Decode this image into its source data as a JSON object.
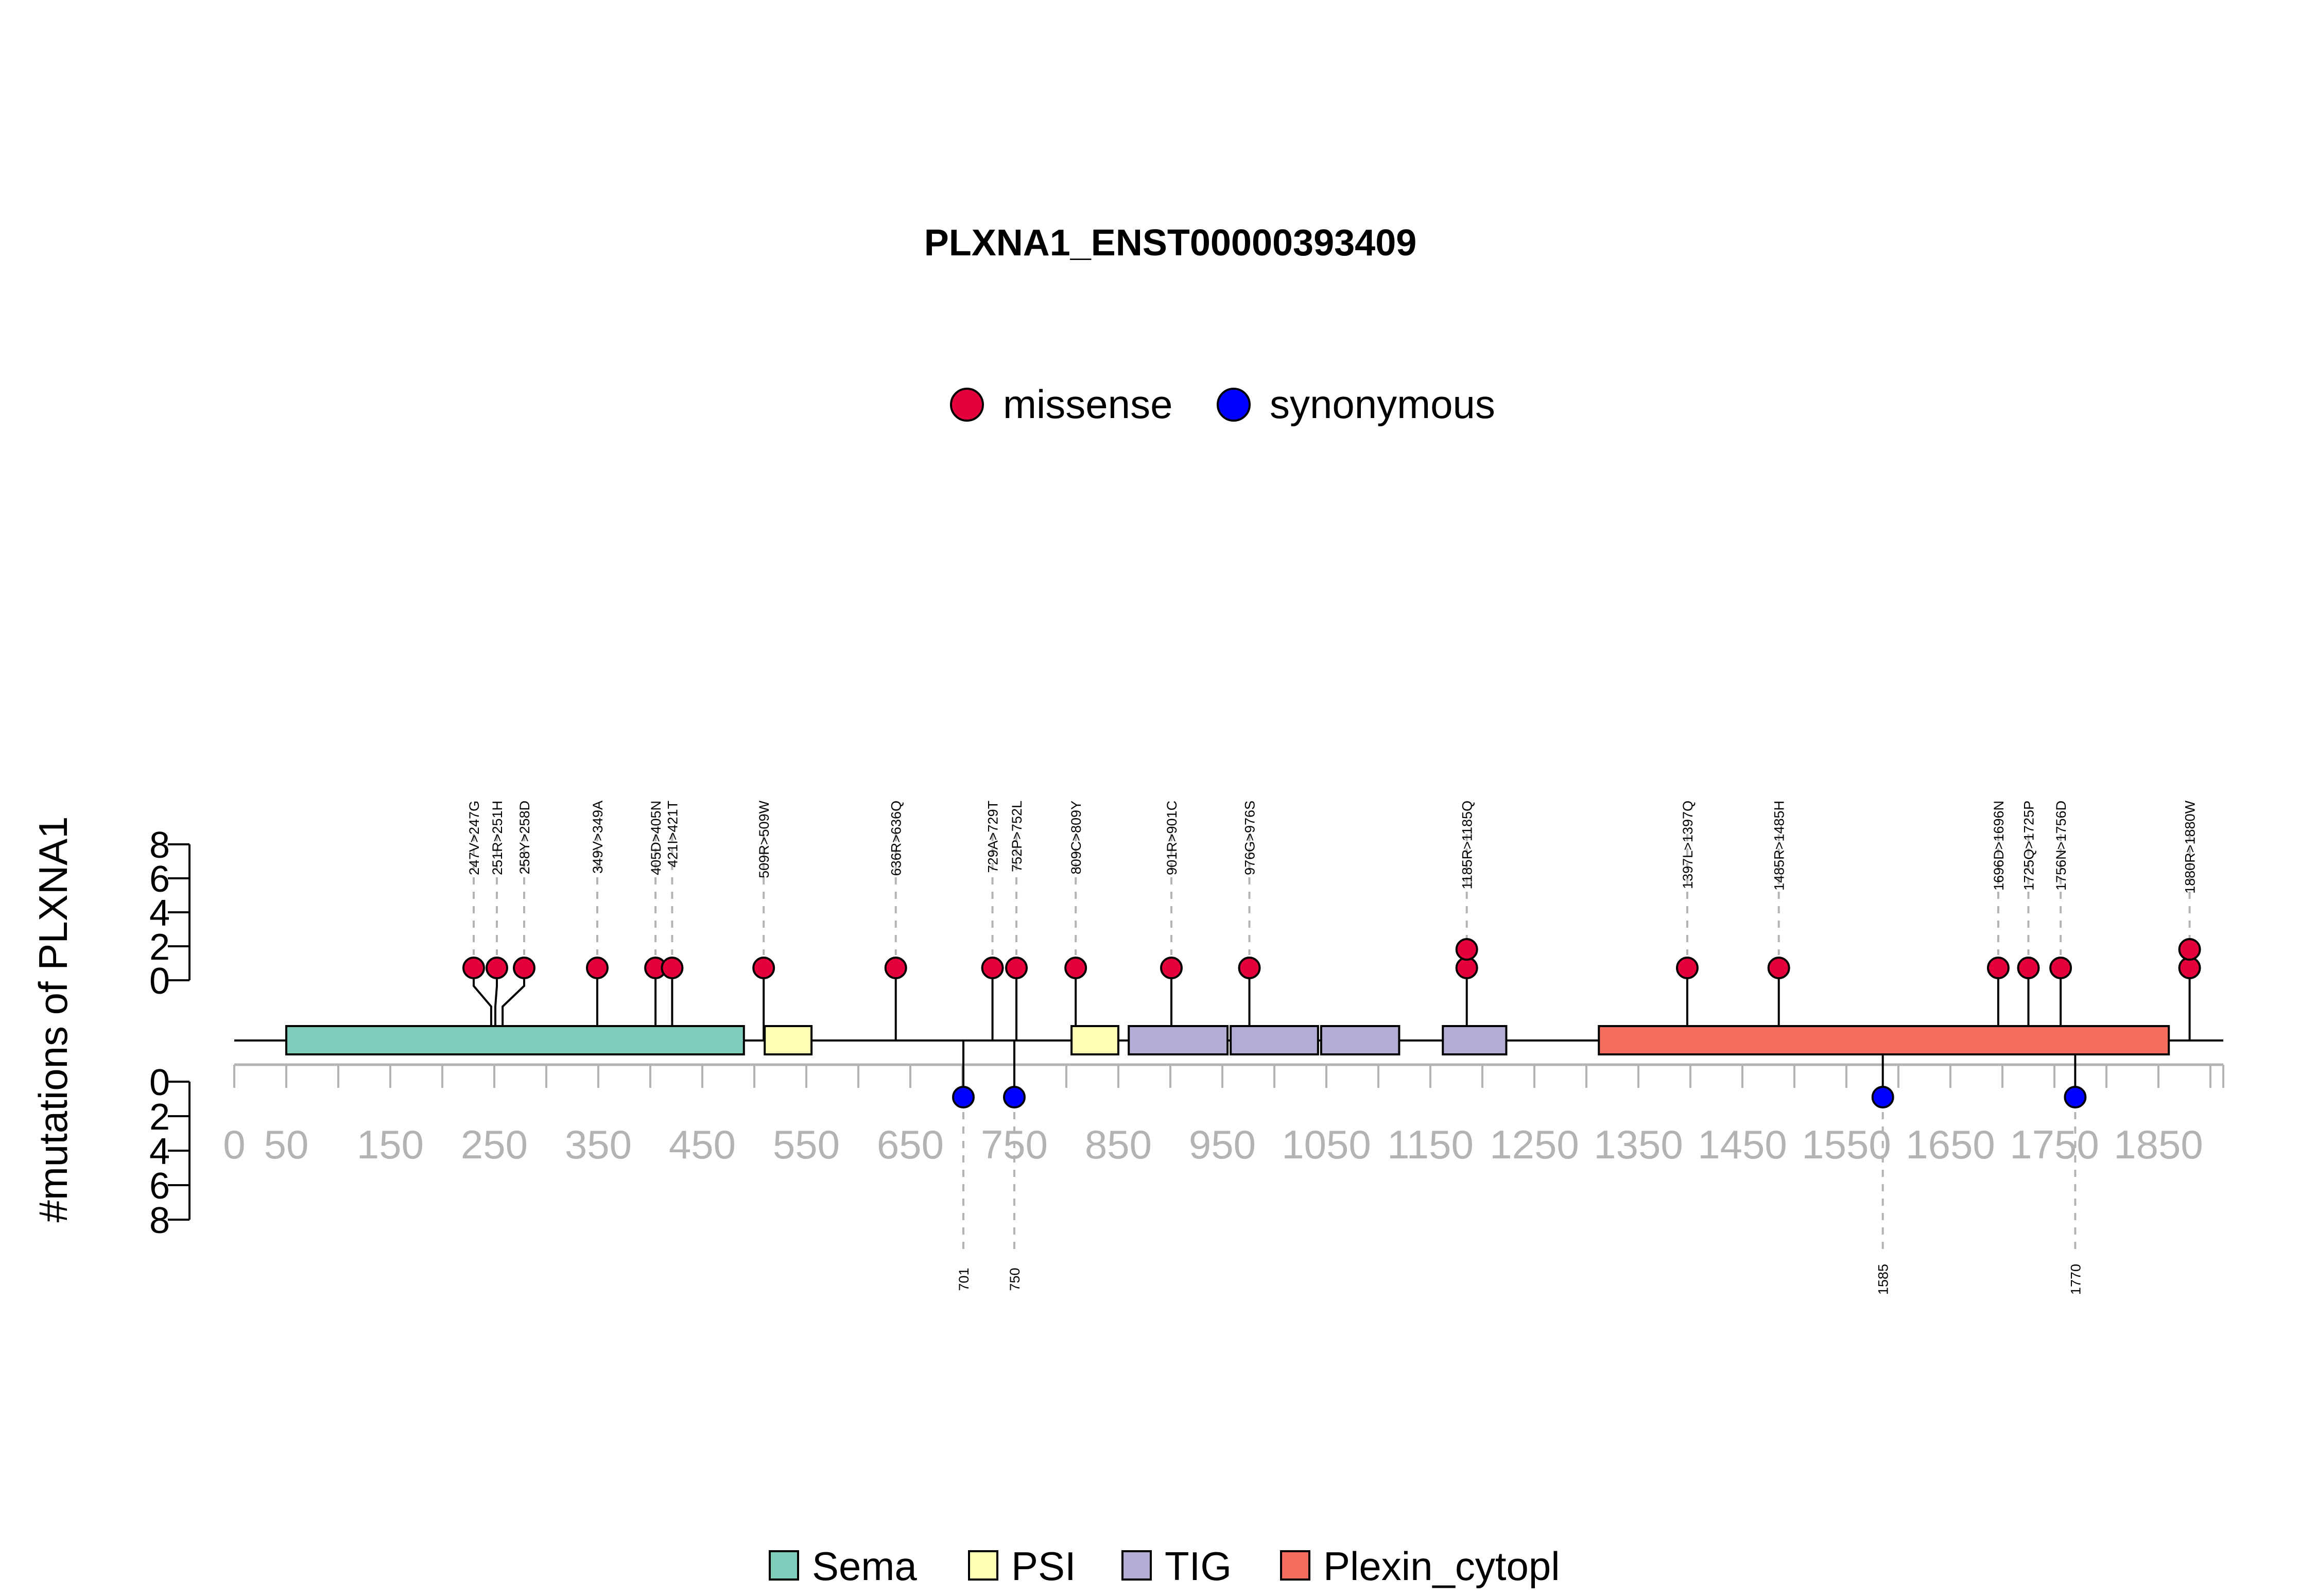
{
  "chart_data": {
    "type": "lollipop",
    "title": "PLXNA1_ENST00000393409",
    "ylabel": "#mutations of PLXNA1",
    "protein_length": 1896,
    "x_ticks": [
      0,
      50,
      150,
      250,
      350,
      450,
      550,
      650,
      750,
      850,
      950,
      1050,
      1150,
      1250,
      1350,
      1450,
      1550,
      1650,
      1750,
      1850
    ],
    "y_ticks_top": [
      0,
      2,
      4,
      6,
      8
    ],
    "y_ticks_bottom": [
      0,
      2,
      4,
      6,
      8
    ],
    "mutation_legend": [
      {
        "name": "missense",
        "color": "#e4003a"
      },
      {
        "name": "synonymous",
        "color": "#0000ff"
      }
    ],
    "domain_legend": [
      {
        "name": "Sema",
        "color": "#7fcdbb"
      },
      {
        "name": "PSI",
        "color": "#ffffb3"
      },
      {
        "name": "TIG",
        "color": "#b3acd5"
      },
      {
        "name": "Plexin_cytopl",
        "color": "#f46d5e"
      }
    ],
    "domains": [
      {
        "name": "Sema",
        "start": 50,
        "end": 490
      },
      {
        "name": "PSI",
        "start": 510,
        "end": 555
      },
      {
        "name": "PSI",
        "start": 805,
        "end": 850
      },
      {
        "name": "TIG",
        "start": 860,
        "end": 955
      },
      {
        "name": "TIG",
        "start": 958,
        "end": 1042
      },
      {
        "name": "TIG",
        "start": 1045,
        "end": 1120
      },
      {
        "name": "TIG",
        "start": 1162,
        "end": 1223
      },
      {
        "name": "Plexin_cytopl",
        "start": 1312,
        "end": 1860
      }
    ],
    "missense": [
      {
        "label": "247V>247G",
        "pos": 247,
        "count": 1
      },
      {
        "label": "251R>251H",
        "pos": 251,
        "count": 1
      },
      {
        "label": "258Y>258D",
        "pos": 258,
        "count": 1
      },
      {
        "label": "349V>349A",
        "pos": 349,
        "count": 1
      },
      {
        "label": "405D>405N",
        "pos": 405,
        "count": 1
      },
      {
        "label": "421I>421T",
        "pos": 421,
        "count": 1
      },
      {
        "label": "509R>509W",
        "pos": 509,
        "count": 1
      },
      {
        "label": "636R>636Q",
        "pos": 636,
        "count": 1
      },
      {
        "label": "729A>729T",
        "pos": 729,
        "count": 1
      },
      {
        "label": "752P>752L",
        "pos": 752,
        "count": 1
      },
      {
        "label": "809C>809Y",
        "pos": 809,
        "count": 1
      },
      {
        "label": "901R>901C",
        "pos": 901,
        "count": 1
      },
      {
        "label": "976G>976S",
        "pos": 976,
        "count": 1
      },
      {
        "label": "1185R>1185Q",
        "pos": 1185,
        "count": 2
      },
      {
        "label": "1397L>1397Q",
        "pos": 1397,
        "count": 1
      },
      {
        "label": "1485R>1485H",
        "pos": 1485,
        "count": 1
      },
      {
        "label": "1696D>1696N",
        "pos": 1696,
        "count": 1
      },
      {
        "label": "1725Q>1725P",
        "pos": 1725,
        "count": 1
      },
      {
        "label": "1756N>1756D",
        "pos": 1756,
        "count": 1
      },
      {
        "label": "1880R>1880W",
        "pos": 1880,
        "count": 2
      }
    ],
    "synonymous": [
      {
        "label": "701",
        "pos": 701,
        "count": 1
      },
      {
        "label": "750",
        "pos": 750,
        "count": 1
      },
      {
        "label": "1585",
        "pos": 1585,
        "count": 1
      },
      {
        "label": "1770",
        "pos": 1770,
        "count": 1
      }
    ]
  }
}
